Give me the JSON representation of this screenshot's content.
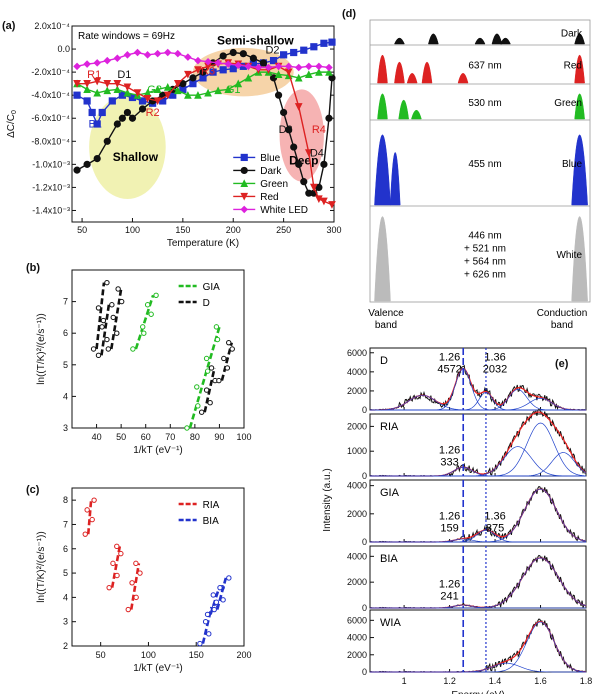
{
  "colors": {
    "blue": "#2233cc",
    "dark": "#111111",
    "green": "#22bb22",
    "red": "#dd2222",
    "white_led": "#dd22dd",
    "gray": "#bbbbbb",
    "shallow_bg": "#eef0a6",
    "semishallow_bg": "#f5cc9a",
    "deep_bg": "#f5a6a6",
    "fit_red": "#ee2222",
    "fit_blue": "#2233dd"
  },
  "panel_labels": {
    "a": "(a)",
    "b": "(b)",
    "c": "(c)",
    "d": "(d)",
    "e": "(e)"
  },
  "chart_data": [
    {
      "id": "a",
      "type": "line",
      "xlabel": "Temperature (K)",
      "ylabel": "ΔC/C",
      "ylabel_sub": "0",
      "xlim": [
        40,
        300
      ],
      "ylim": [
        -0.0015,
        0.0002
      ],
      "xticks": [
        50,
        100,
        150,
        200,
        250,
        300
      ],
      "yticks": [
        0.0002,
        0.0,
        -0.0002,
        -0.0004,
        -0.0006,
        -0.0008,
        -0.001,
        -0.0012,
        -0.0014
      ],
      "ytick_labels": [
        "2.0x10⁻⁴",
        "0.0",
        "-2.0x10⁻⁴",
        "-4.0x10⁻⁴",
        "-6.0x10⁻⁴",
        "-8.0x10⁻⁴",
        "-1.0x10⁻³",
        "-1.2x10⁻³",
        "-1.4x10⁻³"
      ],
      "rate_label": "Rate windows = 69Hz",
      "regions": [
        {
          "label": "Shallow",
          "cx": 95,
          "cy": -0.00085,
          "rx": 38,
          "ry": 0.00045,
          "color": "shallow_bg"
        },
        {
          "label": "Semi-shallow",
          "cx": 210,
          "cy": -0.0002,
          "rx": 50,
          "ry": 0.00021,
          "color": "semishallow_bg"
        },
        {
          "label": "Deep",
          "cx": 268,
          "cy": -0.00075,
          "rx": 22,
          "ry": 0.0004,
          "color": "deep_bg"
        }
      ],
      "peak_labels": [
        {
          "text": "R1",
          "x": 62,
          "y": -0.00025,
          "color": "red"
        },
        {
          "text": "D1",
          "x": 92,
          "y": -0.00025,
          "color": "dark"
        },
        {
          "text": "G2",
          "x": 122,
          "y": -0.00038,
          "color": "green"
        },
        {
          "text": "R2",
          "x": 120,
          "y": -0.00058,
          "color": "red"
        },
        {
          "text": "B1",
          "x": 63,
          "y": -0.00068,
          "color": "blue"
        },
        {
          "text": "R3",
          "x": 175,
          "y": -0.00022,
          "color": "red"
        },
        {
          "text": "G1",
          "x": 200,
          "y": -0.00038,
          "color": "green"
        },
        {
          "text": "D2",
          "x": 239,
          "y": -4e-05,
          "color": "dark"
        },
        {
          "text": "D3",
          "x": 252,
          "y": -0.00073,
          "color": "dark"
        },
        {
          "text": "R4",
          "x": 285,
          "y": -0.00073,
          "color": "red"
        },
        {
          "text": "D4",
          "x": 283,
          "y": -0.00093,
          "color": "dark"
        }
      ],
      "series": [
        {
          "name": "Blue",
          "color": "blue",
          "marker": "square",
          "x": [
            45,
            55,
            60,
            65,
            70,
            80,
            90,
            100,
            110,
            120,
            130,
            140,
            150,
            160,
            170,
            180,
            190,
            200,
            210,
            220,
            230,
            240,
            250,
            260,
            270,
            280,
            290,
            298
          ],
          "y": [
            -0.0004,
            -0.00045,
            -0.00055,
            -0.00065,
            -0.00055,
            -0.00045,
            -0.0004,
            -0.00042,
            -0.00045,
            -0.00047,
            -0.00045,
            -0.0004,
            -0.00035,
            -0.0003,
            -0.00025,
            -0.0002,
            -0.00018,
            -0.00017,
            -0.00015,
            -0.00013,
            -0.00012,
            -0.0001,
            -5e-05,
            -3e-05,
            -1e-05,
            2e-05,
            5e-05,
            6e-05
          ]
        },
        {
          "name": "Dark",
          "color": "dark",
          "marker": "circle",
          "x": [
            45,
            55,
            65,
            75,
            85,
            90,
            95,
            100,
            110,
            120,
            130,
            140,
            150,
            160,
            170,
            180,
            190,
            200,
            210,
            220,
            230,
            240,
            245,
            250,
            255,
            260,
            265,
            270,
            275,
            280,
            285,
            290,
            295,
            298
          ],
          "y": [
            -0.00105,
            -0.001,
            -0.00095,
            -0.0008,
            -0.00065,
            -0.0006,
            -0.00055,
            -0.0006,
            -0.00052,
            -0.00045,
            -0.0004,
            -0.00035,
            -0.0003,
            -0.00025,
            -0.0002,
            -0.00012,
            -6e-05,
            -3e-05,
            -4e-05,
            -8e-05,
            -0.00012,
            -0.00025,
            -0.0004,
            -0.00055,
            -0.0007,
            -0.00085,
            -0.001,
            -0.00115,
            -0.00125,
            -0.00125,
            -0.0012,
            -0.001,
            -0.0006,
            -0.00025
          ]
        },
        {
          "name": "Green",
          "color": "green",
          "marker": "triangle",
          "x": [
            45,
            55,
            65,
            75,
            85,
            95,
            105,
            115,
            125,
            135,
            145,
            155,
            165,
            175,
            185,
            195,
            205,
            215,
            225,
            235,
            245,
            255,
            265,
            275,
            285,
            295
          ],
          "y": [
            -0.0003,
            -0.00035,
            -0.00038,
            -0.00036,
            -0.00035,
            -0.00038,
            -0.0004,
            -0.00038,
            -0.00035,
            -0.00033,
            -0.00036,
            -0.0004,
            -0.0004,
            -0.00038,
            -0.00036,
            -0.00035,
            -0.0003,
            -0.00025,
            -0.0002,
            -0.0002,
            -0.00022,
            -0.00023,
            -0.00025,
            -0.00022,
            -0.0002,
            -0.0002
          ]
        },
        {
          "name": "Red",
          "color": "red",
          "marker": "triangle-down",
          "x": [
            45,
            55,
            65,
            75,
            85,
            95,
            105,
            115,
            125,
            135,
            145,
            155,
            165,
            175,
            185,
            195,
            205,
            215,
            225,
            235,
            245,
            255,
            265,
            275,
            280,
            285,
            290,
            298
          ],
          "y": [
            -0.0003,
            -0.0003,
            -0.00028,
            -0.0003,
            -0.0003,
            -0.00033,
            -0.00038,
            -0.00043,
            -0.00045,
            -0.0004,
            -0.0003,
            -0.00022,
            -0.00018,
            -0.00015,
            -0.00013,
            -0.00012,
            -0.00013,
            -0.00015,
            -0.00018,
            -0.00018,
            -0.00015,
            -0.0002,
            -0.0005,
            -0.0009,
            -0.0012,
            -0.0013,
            -0.00132,
            -0.00135
          ]
        },
        {
          "name": "White LED",
          "color": "white_led",
          "marker": "diamond",
          "x": [
            45,
            55,
            65,
            75,
            85,
            95,
            105,
            115,
            125,
            135,
            145,
            155,
            165,
            175,
            185,
            195,
            205,
            215,
            225,
            235,
            245,
            255,
            265,
            275,
            285,
            295
          ],
          "y": [
            -0.00015,
            -0.00013,
            -0.00012,
            -0.0001,
            -8e-05,
            -5e-05,
            -3e-05,
            -5e-05,
            -4e-05,
            -3e-05,
            -4e-05,
            -7e-05,
            -0.0001,
            -0.00011,
            -0.00012,
            -0.00013,
            -0.00014,
            -0.00015,
            -0.00016,
            -0.00016,
            -0.00015,
            -0.00015,
            -0.00016,
            -0.00015,
            -0.00015,
            -0.00016
          ]
        }
      ],
      "legend_placement": "bottom-right"
    },
    {
      "id": "b",
      "type": "scatter",
      "xlabel": "1/kT (eV⁻¹)",
      "ylabel": "ln((T/K)²/(e/s⁻¹))",
      "xlim": [
        30,
        100
      ],
      "ylim": [
        3,
        8
      ],
      "xticks": [
        40,
        50,
        60,
        70,
        80,
        90,
        100
      ],
      "yticks": [
        3,
        4,
        5,
        6,
        7
      ],
      "series": [
        {
          "name": "GIA",
          "color": "green",
          "groups": [
            {
              "x": [
                56,
                58,
                60,
                61,
                62,
                63
              ],
              "y": [
                5.5,
                6.0,
                6.2,
                6.6,
                6.9,
                7.2
              ]
            },
            {
              "x": [
                78,
                80,
                82,
                84,
                86,
                88,
                90
              ],
              "y": [
                3.0,
                3.7,
                4.3,
                4.8,
                5.2,
                5.8,
                6.2
              ]
            }
          ]
        },
        {
          "name": "D",
          "color": "dark",
          "groups": [
            {
              "x": [
                40,
                41,
                42,
                43
              ],
              "y": [
                5.5,
                6.2,
                6.8,
                7.6
              ]
            },
            {
              "x": [
                42,
                43,
                44,
                45
              ],
              "y": [
                5.3,
                5.8,
                6.4,
                6.9
              ]
            },
            {
              "x": [
                46,
                47,
                48,
                49,
                50
              ],
              "y": [
                5.5,
                6.0,
                6.5,
                7.0,
                7.4
              ]
            },
            {
              "x": [
                84,
                85,
                86,
                87,
                88
              ],
              "y": [
                3.5,
                3.8,
                4.2,
                4.5,
                4.9
              ]
            },
            {
              "x": [
                91,
                92,
                93,
                94,
                95
              ],
              "y": [
                4.5,
                4.9,
                5.2,
                5.5,
                5.7
              ]
            }
          ]
        }
      ],
      "legend_placement": "top-right"
    },
    {
      "id": "c",
      "type": "scatter",
      "xlabel": "1/kT (eV⁻¹)",
      "ylabel": "ln((T/K)²/(e/s⁻¹))",
      "xlim": [
        20,
        200
      ],
      "ylim": [
        2,
        8.5
      ],
      "xticks": [
        50,
        100,
        150,
        200
      ],
      "yticks": [
        2,
        3,
        4,
        5,
        6,
        7,
        8
      ],
      "series": [
        {
          "name": "RIA",
          "color": "red",
          "groups": [
            {
              "x": [
                37,
                38,
                39,
                40
              ],
              "y": [
                6.6,
                7.2,
                7.6,
                8.0
              ]
            },
            {
              "x": [
                62,
                64,
                66,
                68,
                70
              ],
              "y": [
                4.4,
                4.9,
                5.4,
                5.8,
                6.1
              ]
            },
            {
              "x": [
                82,
                84,
                86,
                88,
                90
              ],
              "y": [
                3.5,
                4.0,
                4.6,
                5.0,
                5.4
              ]
            }
          ]
        },
        {
          "name": "BIA",
          "color": "blue",
          "groups": [
            {
              "x": [
                157,
                160,
                163,
                166
              ],
              "y": [
                2.1,
                2.5,
                3.0,
                3.6
              ]
            },
            {
              "x": [
                165,
                168,
                171,
                174
              ],
              "y": [
                3.3,
                3.8,
                4.1,
                4.4
              ]
            },
            {
              "x": [
                172,
                175,
                178,
                181
              ],
              "y": [
                3.5,
                3.9,
                4.4,
                4.8
              ]
            }
          ]
        }
      ],
      "legend_placement": "top-right"
    },
    {
      "id": "d",
      "type": "other",
      "valence_label": "Valence\nband",
      "conduction_label": "Conduction\nband",
      "rows": [
        {
          "name": "Dark",
          "wavelength": "",
          "color": "dark",
          "peaks": [
            0.12,
            0.28,
            0.5,
            0.58,
            0.62,
            0.97
          ]
        },
        {
          "name": "Red",
          "wavelength": "637 nm",
          "color": "red",
          "peaks": [
            0.04,
            0.12,
            0.18,
            0.25,
            0.42,
            0.97
          ]
        },
        {
          "name": "Green",
          "wavelength": "530 nm",
          "color": "green",
          "peaks": [
            0.04,
            0.14,
            0.2,
            0.97
          ]
        },
        {
          "name": "Blue",
          "wavelength": "455 nm",
          "color": "blue",
          "peaks": [
            0.04,
            0.1,
            0.97
          ]
        },
        {
          "name": "White",
          "wavelength": "446 nm\n+ 521 nm\n+ 564 nm\n+ 626 nm",
          "color": "gray",
          "peaks": [
            0.04,
            0.97
          ]
        }
      ]
    },
    {
      "id": "e",
      "type": "line",
      "xlabel": "Energy (eV)",
      "ylabel": "Intensity (a.u.)",
      "xlim": [
        0.85,
        1.8
      ],
      "xticks": [
        1.0,
        1.2,
        1.4,
        1.6,
        1.8
      ],
      "xtick_labels": [
        "1",
        "1.2",
        "1.4",
        "1.6",
        "1.8"
      ],
      "vlines": [
        {
          "x": 1.26,
          "style": "dashed",
          "color": "blue"
        },
        {
          "x": 1.36,
          "style": "dotted",
          "color": "blue"
        }
      ],
      "subpanels": [
        {
          "name": "D",
          "yticks": [
            0,
            2000,
            4000,
            6000
          ],
          "ymax": 6500,
          "annotations": [
            {
              "x": 1.2,
              "y": 5200,
              "text": "1.26\n4572"
            },
            {
              "x": 1.4,
              "y": 5200,
              "text": "1.36\n2032"
            }
          ]
        },
        {
          "name": "RIA",
          "yticks": [
            0,
            1000,
            2000
          ],
          "ymax": 2500,
          "annotations": [
            {
              "x": 1.2,
              "y": 900,
              "text": "1.26\n333"
            }
          ]
        },
        {
          "name": "GIA",
          "yticks": [
            0,
            2000,
            4000
          ],
          "ymax": 4400,
          "annotations": [
            {
              "x": 1.2,
              "y": 1600,
              "text": "1.26\n159"
            },
            {
              "x": 1.4,
              "y": 1600,
              "text": "1.36\n875"
            }
          ]
        },
        {
          "name": "BIA",
          "yticks": [
            0,
            2000,
            4000
          ],
          "ymax": 4800,
          "annotations": [
            {
              "x": 1.2,
              "y": 1600,
              "text": "1.26\n241"
            }
          ]
        },
        {
          "name": "WIA",
          "yticks": [
            0,
            2000,
            4000,
            6000
          ],
          "ymax": 7200,
          "annotations": []
        }
      ]
    }
  ]
}
